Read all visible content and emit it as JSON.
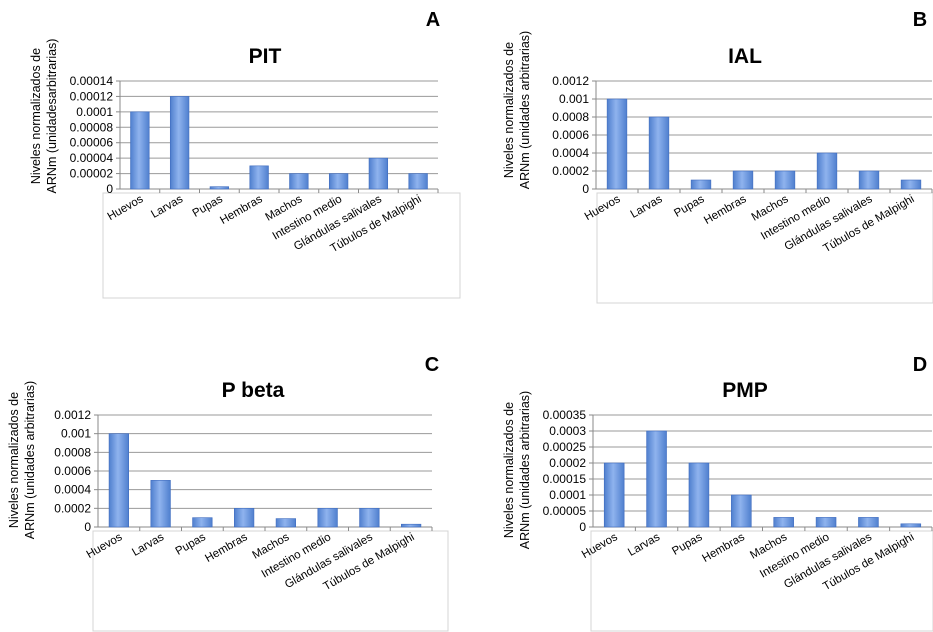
{
  "chart_data": [
    {
      "type": "bar",
      "panel_letter": "A",
      "title": "PIT",
      "ylabel": [
        "Niveles normalizados de",
        "ARNm (unidadesarbitrarias)"
      ],
      "categories": [
        "Huevos",
        "Larvas",
        "Pupas",
        "Hembras",
        "Machos",
        "Intestino medio",
        "Glándulas salivales",
        "Túbulos de Malpighi"
      ],
      "values": [
        0.0001,
        0.00012,
        3e-06,
        3e-05,
        2e-05,
        2e-05,
        4e-05,
        2e-05
      ],
      "ylim": [
        0,
        0.00014
      ],
      "yticks": [
        "0",
        "0.00002",
        "0.00004",
        "0.00006",
        "0.00008",
        "0.0001",
        "0.00012",
        "0.00014"
      ],
      "grid": true,
      "bar_color": "#5b8dd8"
    },
    {
      "type": "bar",
      "panel_letter": "B",
      "title": "IAL",
      "ylabel": [
        "Niveles normalizados de",
        "ARNm (unidades arbitrarias)"
      ],
      "categories": [
        "Huevos",
        "Larvas",
        "Pupas",
        "Hembras",
        "Machos",
        "Intestino medio",
        "Glándulas salivales",
        "Túbulos de Malpighi"
      ],
      "values": [
        0.001,
        0.0008,
        0.0001,
        0.0002,
        0.0002,
        0.0004,
        0.0002,
        0.0001
      ],
      "ylim": [
        0,
        0.0012
      ],
      "yticks": [
        "0",
        "0.0002",
        "0.0004",
        "0.0006",
        "0.0008",
        "0.001",
        "0.0012"
      ],
      "grid": true,
      "bar_color": "#5b8dd8"
    },
    {
      "type": "bar",
      "panel_letter": "C",
      "title": "P beta",
      "ylabel": [
        "Niveles normalizados de",
        "ARNm (unidades arbitrarias)"
      ],
      "categories": [
        "Huevos",
        "Larvas",
        "Pupas",
        "Hembras",
        "Machos",
        "Intestino medio",
        "Glándulas salivales",
        "Túbulos de Malpighi"
      ],
      "values": [
        0.001,
        0.0005,
        0.0001,
        0.0002,
        9e-05,
        0.0002,
        0.0002,
        3e-05
      ],
      "ylim": [
        0,
        0.0012
      ],
      "yticks": [
        "0",
        "0.0002",
        "0.0004",
        "0.0006",
        "0.0008",
        "0.001",
        "0.0012"
      ],
      "grid": true,
      "bar_color": "#5b8dd8"
    },
    {
      "type": "bar",
      "panel_letter": "D",
      "title": "PMP",
      "ylabel": [
        "Niveles normalizados de",
        "ARNm (unidades arbitrarias)"
      ],
      "categories": [
        "Huevos",
        "Larvas",
        "Pupas",
        "Hembras",
        "Machos",
        "Intestino medio",
        "Glándulas salivales",
        "Túbulos de Malpighi"
      ],
      "values": [
        0.0002,
        0.0003,
        0.0002,
        0.0001,
        3e-05,
        3e-05,
        3e-05,
        1e-05
      ],
      "ylim": [
        0,
        0.00035
      ],
      "yticks": [
        "0",
        "0.00005",
        "0.0001",
        "0.00015",
        "0.0002",
        "0.00025",
        "0.0003",
        "0.00035"
      ],
      "grid": true,
      "bar_color": "#5b8dd8"
    }
  ]
}
